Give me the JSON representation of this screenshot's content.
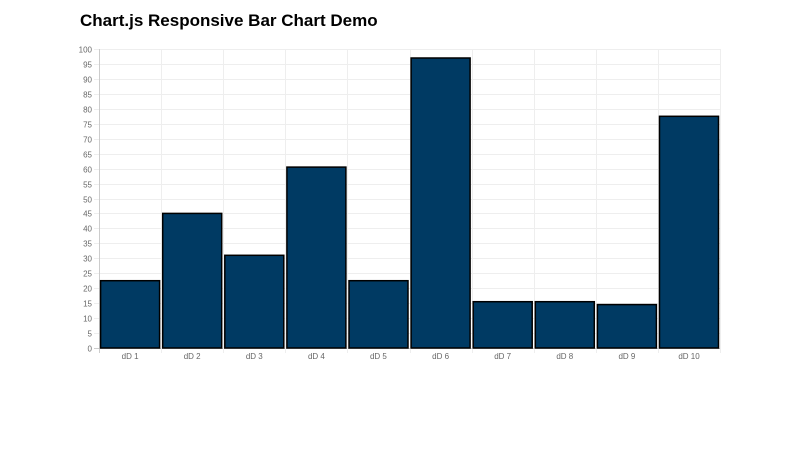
{
  "page": {
    "title": "Chart.js Responsive Bar Chart Demo"
  },
  "colors": {
    "bar_fill": "#003a63",
    "bar_stroke": "#000000",
    "grid": "#eeeeee",
    "axis": "#cccccc",
    "tick_text": "#666666"
  },
  "chart_data": {
    "type": "bar",
    "categories": [
      "dD 1",
      "dD 2",
      "dD 3",
      "dD 4",
      "dD 5",
      "dD 6",
      "dD 7",
      "dD 8",
      "dD 9",
      "dD 10"
    ],
    "values": [
      22.5,
      45,
      31,
      60.5,
      22.5,
      97,
      15.5,
      15.5,
      14.5,
      77.5
    ],
    "ylim": [
      0,
      100
    ],
    "y_ticks": [
      0,
      5,
      10,
      15,
      20,
      25,
      30,
      35,
      40,
      45,
      50,
      55,
      60,
      65,
      70,
      75,
      80,
      85,
      90,
      95,
      100
    ],
    "title": "",
    "xlabel": "",
    "ylabel": "",
    "grid": true,
    "legend": "none"
  }
}
